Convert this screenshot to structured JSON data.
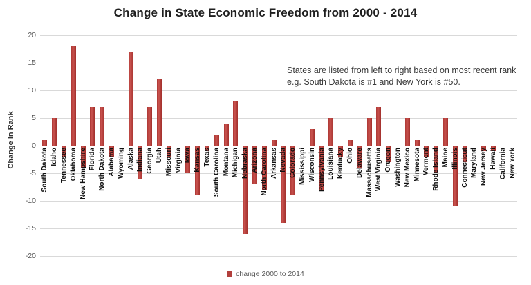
{
  "title": "Change in State Economic Freedom from 2000 - 2014",
  "annotation": {
    "line1": "States are listed from left to right based on most recent rank",
    "line2": "e.g. South Dakota is #1 and New York is #50."
  },
  "y_axis": {
    "label": "Change In Rank",
    "ticks": [
      20,
      15,
      10,
      5,
      0,
      -5,
      -10,
      -15,
      -20
    ]
  },
  "legend": {
    "label": "change 2000 to 2014",
    "swatch_color": "#b23f3c"
  },
  "colors": {
    "bar": "#b23f3c",
    "gridline": "#d9d9d9",
    "background": "#ffffff"
  },
  "chart_data": {
    "type": "bar",
    "title": "Change in State Economic Freedom from 2000 - 2014",
    "xlabel": "",
    "ylabel": "Change In Rank",
    "ylim": [
      -20,
      20
    ],
    "grid": true,
    "legend_position": "bottom",
    "legend": [
      "change 2000 to 2014"
    ],
    "annotation": "States are listed from left to right based on most recent rank e.g. South Dakota is #1 and New York is #50.",
    "categories": [
      "South Dakota",
      "Idaho",
      "Tennessee",
      "Oklahoma",
      "New Hampshire",
      "Florida",
      "North Dakota",
      "Alabama",
      "Wyoming",
      "Alaska",
      "Indiana",
      "Georgia",
      "Utah",
      "Missouri",
      "Virginia",
      "Iowa",
      "Kansas",
      "Texas",
      "South Carolina",
      "Montana",
      "Michigan",
      "Nebraska",
      "Arizona",
      "North Carolina",
      "Arkansas",
      "Nevada",
      "Colorado",
      "Mississippi",
      "Wisconsin",
      "Pennsylvania",
      "Louisiana",
      "Kentucky",
      "Ohio",
      "Delaware",
      "Massachusetts",
      "West Virginia",
      "Oregon",
      "Washington",
      "New Mexico",
      "Minnesota",
      "Vermont",
      "Rhode Island",
      "Maine",
      "Illinois",
      "Connecticut",
      "Maryland",
      "New Jersey",
      "Hawaii",
      "California",
      "New York"
    ],
    "values": [
      1,
      5,
      -2,
      18,
      -4,
      7,
      7,
      -2,
      0,
      17,
      -6,
      7,
      12,
      -2,
      0,
      -5,
      -9,
      -1,
      2,
      4,
      8,
      -16,
      -7,
      -8,
      1,
      -14,
      -9,
      0,
      3,
      -8,
      5,
      -2,
      1,
      -4,
      5,
      7,
      -3,
      0,
      5,
      1,
      -2,
      -5,
      5,
      -11,
      -3,
      0,
      -1,
      -1,
      0,
      0
    ]
  }
}
